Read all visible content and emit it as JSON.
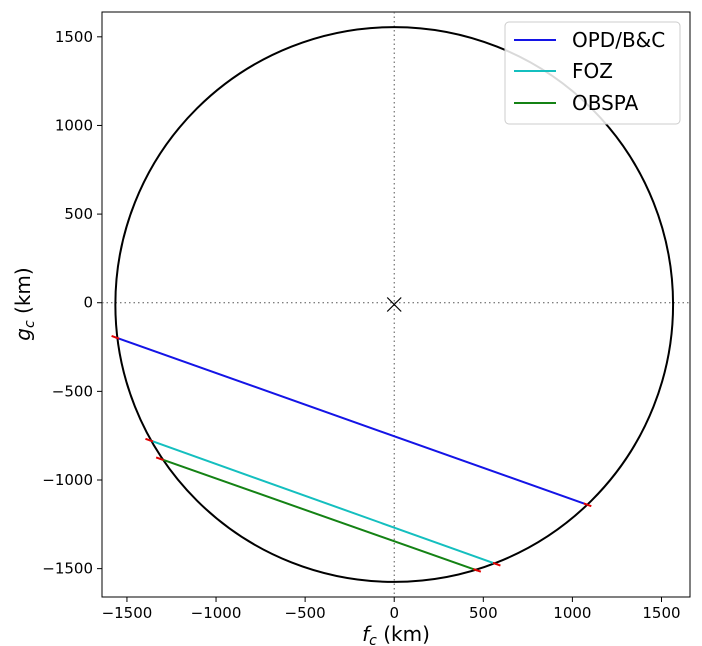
{
  "chart_data": {
    "type": "line",
    "title": "",
    "xlabel_main": "f",
    "xlabel_sub": "c",
    "xlabel_unit": " (km)",
    "ylabel_main": "g",
    "ylabel_sub": "c",
    "ylabel_unit": " (km)",
    "xlim": [
      -1640,
      1660
    ],
    "ylim": [
      -1660,
      1640
    ],
    "x_ticks": [
      -1500,
      -1000,
      -500,
      0,
      500,
      1000,
      1500
    ],
    "y_ticks": [
      -1500,
      -1000,
      -500,
      0,
      500,
      1000,
      1500
    ],
    "x_tick_labels": [
      "−1500",
      "−1000",
      "−500",
      "0",
      "500",
      "1000",
      "1500"
    ],
    "y_tick_labels": [
      "−1500",
      "−1000",
      "−500",
      "0",
      "500",
      "1000",
      "1500"
    ],
    "grid": false,
    "legend_position": "top-right",
    "limb": {
      "center": [
        0,
        -10
      ],
      "radius": 1565,
      "color": "#000000"
    },
    "center_marker": {
      "x": 0,
      "y": -10,
      "marker": "x",
      "color": "#000000"
    },
    "reference_lines": {
      "x": 0,
      "y": 0,
      "style": "dotted",
      "color": "#555555"
    },
    "series": [
      {
        "name": "OPD/B&C",
        "color": "#1414e6",
        "x": [
          -1565,
          1085
        ],
        "y": [
          -195,
          -1140
        ],
        "endpoints_color": "#e00000"
      },
      {
        "name": "FOZ",
        "color": "#14bfbf",
        "x": [
          -1375,
          575
        ],
        "y": [
          -775,
          -1475
        ],
        "endpoints_color": "#e00000"
      },
      {
        "name": "OBSPA",
        "color": "#148214",
        "x": [
          -1315,
          465
        ],
        "y": [
          -880,
          -1510
        ],
        "endpoints_color": "#e00000"
      }
    ]
  }
}
